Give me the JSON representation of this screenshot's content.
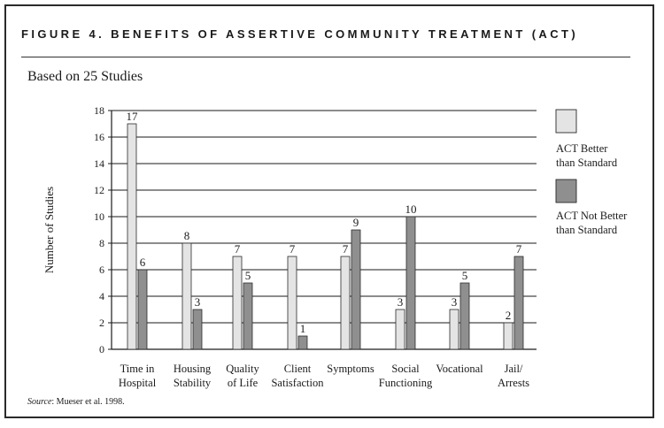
{
  "figure_title": "FIGURE 4. BENEFITS OF ASSERTIVE COMMUNITY TREATMENT (ACT)",
  "subtitle": "Based on 25 Studies",
  "source": {
    "label": "Source",
    "text": ": Mueser et al. 1998."
  },
  "colors": {
    "better": "#e4e4e4",
    "not_better": "#8f8f8f",
    "axis": "#1a1a1a",
    "grid": "#1a1a1a"
  },
  "chart_data": {
    "type": "bar",
    "ylabel": "Number of Studies",
    "ylim": [
      0,
      18
    ],
    "yticks": [
      0,
      2,
      4,
      6,
      8,
      10,
      12,
      14,
      16,
      18
    ],
    "grid": true,
    "legend_position": "right",
    "categories": [
      [
        "Time in",
        "Hospital"
      ],
      [
        "Housing",
        "Stability"
      ],
      [
        "Quality",
        "of Life"
      ],
      [
        "Client",
        "Satisfaction"
      ],
      [
        "Symptoms"
      ],
      [
        "Social",
        "Functioning"
      ],
      [
        "Vocational"
      ],
      [
        "Jail/",
        "Arrests"
      ]
    ],
    "series": [
      {
        "name": "ACT Better than Standard",
        "legend_lines": [
          "ACT Better",
          "than Standard"
        ],
        "values": [
          17,
          8,
          7,
          7,
          7,
          3,
          3,
          2
        ]
      },
      {
        "name": "ACT Not Better than Standard",
        "legend_lines": [
          "ACT Not Better",
          "than Standard"
        ],
        "values": [
          6,
          3,
          5,
          1,
          9,
          10,
          5,
          7
        ]
      }
    ]
  }
}
